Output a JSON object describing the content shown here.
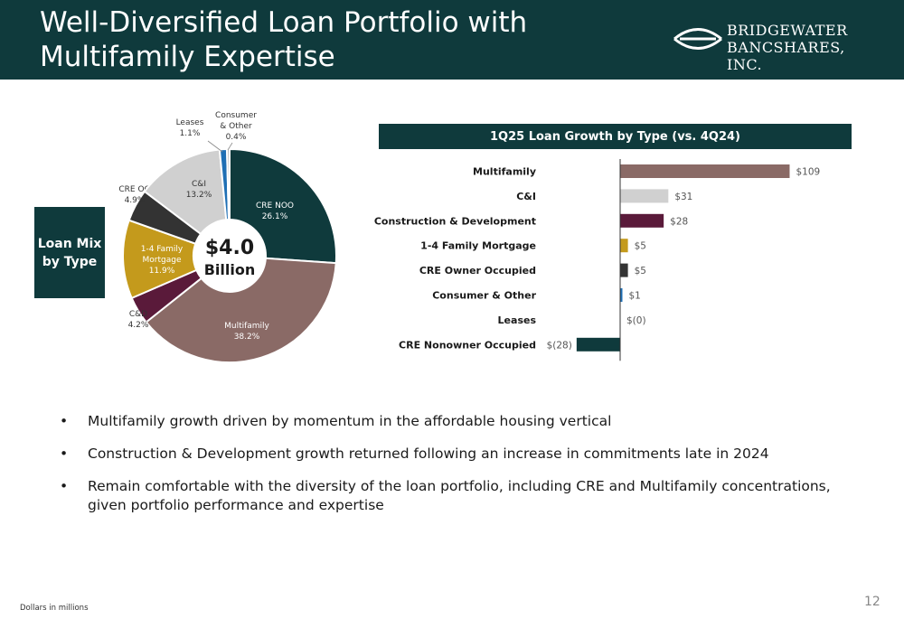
{
  "header": {
    "title_line1": "Well-Diversified Loan Portfolio with",
    "title_line2": "Multifamily Expertise",
    "logo_line1": "BRIDGEWATER",
    "logo_line2": "BANCSHARES, INC."
  },
  "loan_mix_label_line1": "Loan Mix",
  "loan_mix_label_line2": "by Type",
  "donut_center": {
    "amount": "$4.0",
    "unit": "Billion"
  },
  "bar_title": "1Q25 Loan Growth by Type (vs. 4Q24)",
  "bullets": [
    "Multifamily growth driven by momentum in the affordable housing vertical",
    "Construction & Development growth returned following an increase in commitments late in 2024",
    "Remain comfortable with the diversity of the loan portfolio, including CRE and Multifamily concentrations, given portfolio performance and expertise"
  ],
  "bullet_char": "•",
  "footnote": "Dollars in millions",
  "page_number": "12",
  "colors": {
    "navy": "#0f3a3c",
    "multifamily": "#8a6a66",
    "cni": "#d0d0d0",
    "construction": "#5a1a3a",
    "one_four": "#c49a1c",
    "cre_oo": "#333333",
    "consumer": "#1f6fb4",
    "leases": "#b8b8b8",
    "cre_noo": "#0f3a3c"
  },
  "chart_data": [
    {
      "type": "pie",
      "donut": true,
      "total_label": "$4.0 Billion",
      "slices": [
        {
          "name_lines": [
            "CRE NOO"
          ],
          "value": 26.1,
          "label": "26.1%",
          "color": "#0f3a3c"
        },
        {
          "name_lines": [
            "Multifamily"
          ],
          "value": 38.2,
          "label": "38.2%",
          "color": "#8a6a66"
        },
        {
          "name_lines": [
            "C&D"
          ],
          "value": 4.2,
          "label": "4.2%",
          "color": "#5a1a3a"
        },
        {
          "name_lines": [
            "1-4 Family",
            "Mortgage"
          ],
          "value": 11.9,
          "label": "11.9%",
          "color": "#c49a1c"
        },
        {
          "name_lines": [
            "CRE OO"
          ],
          "value": 4.9,
          "label": "4.9%",
          "color": "#333333"
        },
        {
          "name_lines": [
            "C&I"
          ],
          "value": 13.2,
          "label": "13.2%",
          "color": "#d0d0d0"
        },
        {
          "name_lines": [
            "Leases"
          ],
          "value": 1.1,
          "label": "1.1%",
          "color": "#1f6fb4"
        },
        {
          "name_lines": [
            "Consumer",
            "& Other"
          ],
          "value": 0.4,
          "label": "0.4%",
          "color": "#b8b8b8"
        }
      ]
    },
    {
      "type": "bar",
      "orientation": "horizontal",
      "title": "1Q25 Loan Growth by Type (vs. 4Q24)",
      "unit": "Dollars in millions",
      "categories": [
        "Multifamily",
        "C&I",
        "Construction & Development",
        "1-4 Family Mortgage",
        "CRE Owner Occupied",
        "Consumer & Other",
        "Leases",
        "CRE Nonowner Occupied"
      ],
      "values": [
        109,
        31,
        28,
        5,
        5,
        1,
        0,
        -28
      ],
      "data_labels": [
        "$109",
        "$31",
        "$28",
        "$5",
        "$5",
        "$1",
        "$(0)",
        "$(28)"
      ],
      "colors": [
        "#8a6a66",
        "#d0d0d0",
        "#5a1a3a",
        "#c49a1c",
        "#333333",
        "#1f6fb4",
        "#b8b8b8",
        "#0f3a3c"
      ]
    }
  ]
}
